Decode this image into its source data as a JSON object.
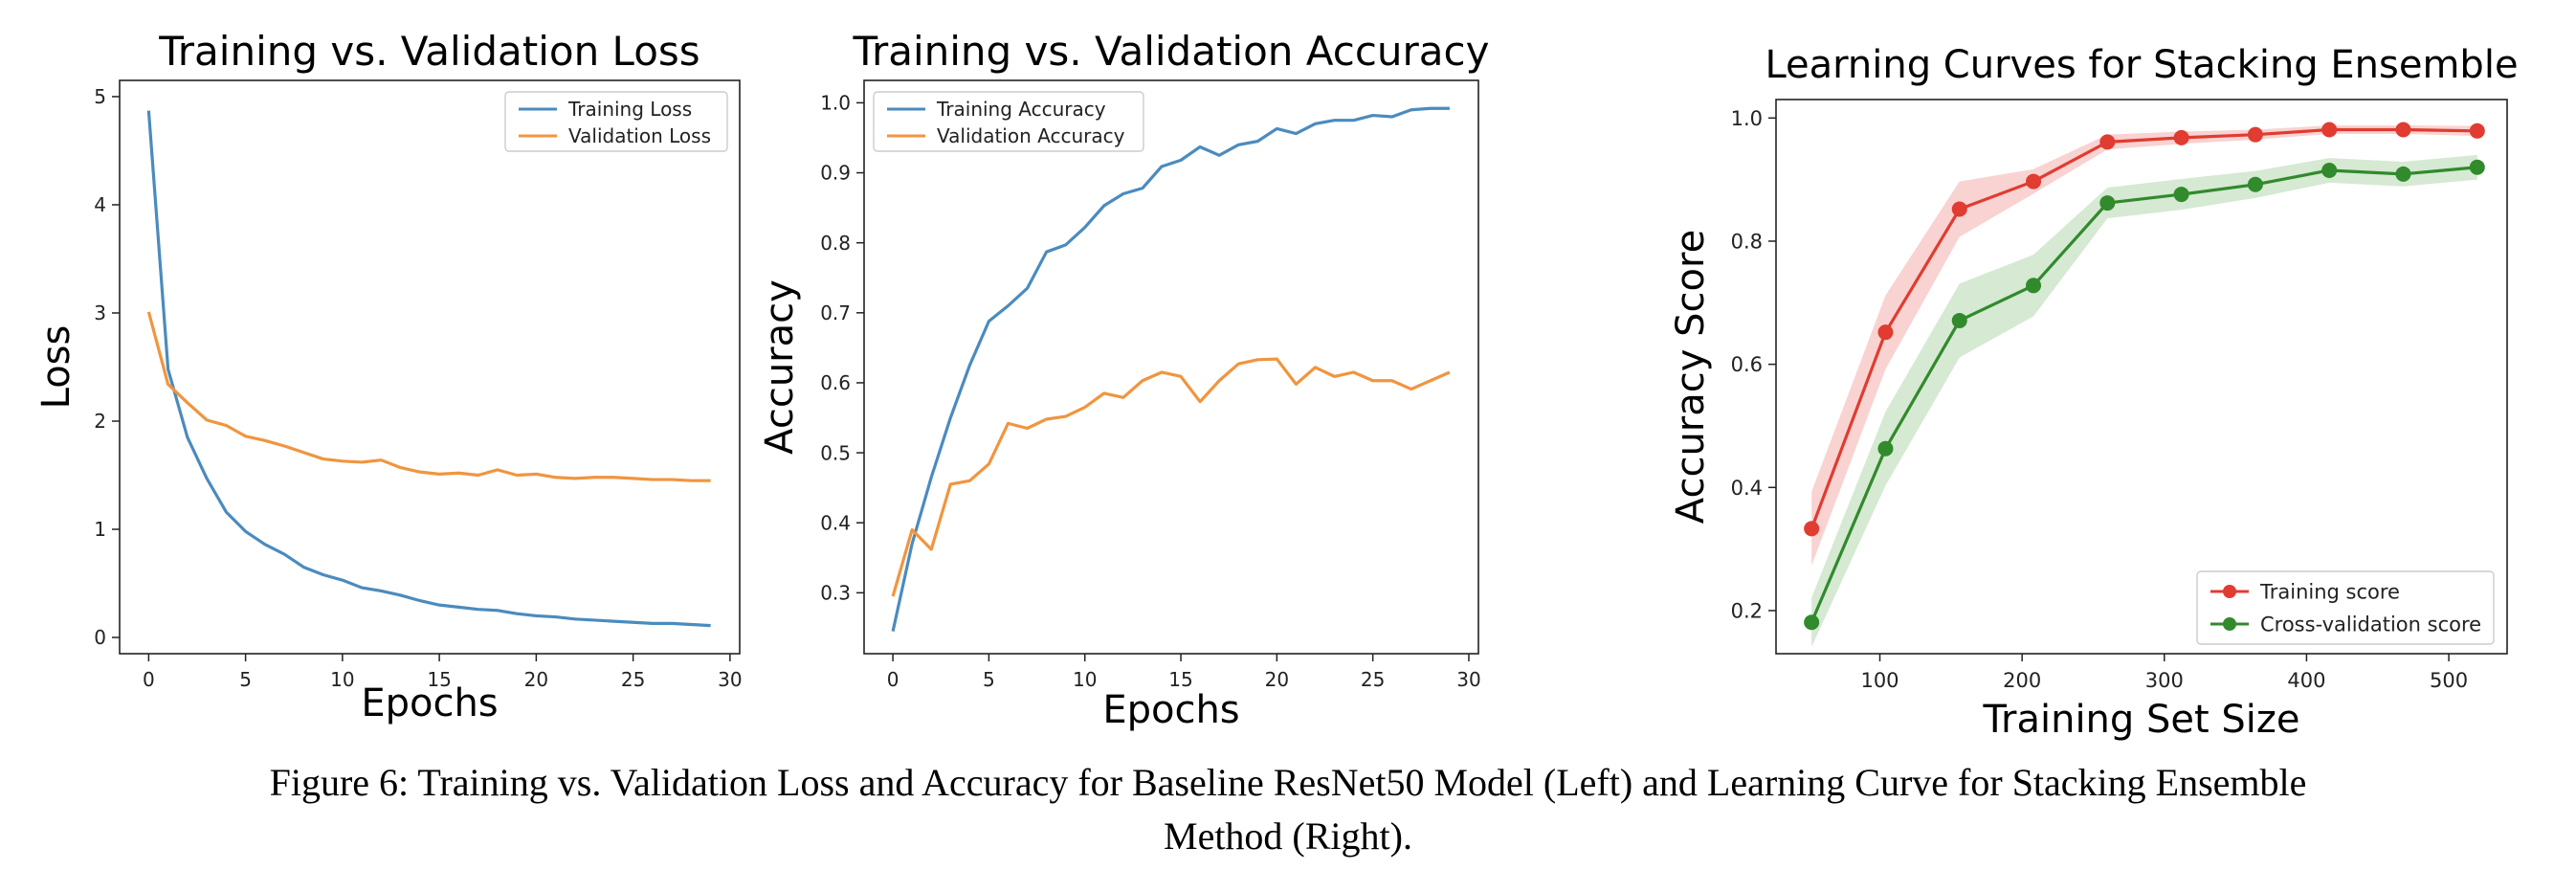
{
  "caption": {
    "line1": "Figure 6: Training vs. Validation Loss and Accuracy for Baseline ResNet50 Model (Left) and Learning Curve for Stacking Ensemble",
    "line2": "Method (Right)."
  },
  "chart_data": [
    {
      "type": "line",
      "title": "Training vs. Validation Loss",
      "xlabel": "Epochs",
      "ylabel": "Loss",
      "xlim": [
        -1.5,
        30.5
      ],
      "ylim": [
        -0.15,
        5.15
      ],
      "xticks": [
        0,
        5,
        10,
        15,
        20,
        25,
        30
      ],
      "yticks": [
        0,
        1,
        2,
        3,
        4,
        5
      ],
      "grid": false,
      "legend": "top-right",
      "x": [
        0,
        1,
        2,
        3,
        4,
        5,
        6,
        7,
        8,
        9,
        10,
        11,
        12,
        13,
        14,
        15,
        16,
        17,
        18,
        19,
        20,
        21,
        22,
        23,
        24,
        25,
        26,
        27,
        28,
        29
      ],
      "series": [
        {
          "name": "Training Loss",
          "color": "#4b8bbe",
          "values": [
            4.87,
            2.48,
            1.85,
            1.47,
            1.16,
            0.98,
            0.86,
            0.77,
            0.65,
            0.58,
            0.53,
            0.46,
            0.43,
            0.39,
            0.34,
            0.3,
            0.28,
            0.26,
            0.25,
            0.22,
            0.2,
            0.19,
            0.17,
            0.16,
            0.15,
            0.14,
            0.13,
            0.13,
            0.12,
            0.11
          ]
        },
        {
          "name": "Validation Loss",
          "color": "#f0953f",
          "values": [
            3.01,
            2.34,
            2.17,
            2.01,
            1.96,
            1.86,
            1.82,
            1.77,
            1.71,
            1.65,
            1.63,
            1.62,
            1.64,
            1.57,
            1.53,
            1.51,
            1.52,
            1.5,
            1.55,
            1.5,
            1.51,
            1.48,
            1.47,
            1.48,
            1.48,
            1.47,
            1.46,
            1.46,
            1.45,
            1.45
          ]
        }
      ]
    },
    {
      "type": "line",
      "title": "Training vs. Validation Accuracy",
      "xlabel": "Epochs",
      "ylabel": "Accuracy",
      "xlim": [
        -1.5,
        30.5
      ],
      "ylim": [
        0.213,
        1.032
      ],
      "xticks": [
        0,
        5,
        10,
        15,
        20,
        25,
        30
      ],
      "yticks": [
        0.3,
        0.4,
        0.5,
        0.6,
        0.7,
        0.8,
        0.9,
        1.0
      ],
      "ytick_labels": [
        "0.3",
        "0.4",
        "0.5",
        "0.6",
        "0.7",
        "0.8",
        "0.9",
        "1.0"
      ],
      "grid": false,
      "legend": "top-left",
      "x": [
        0,
        1,
        2,
        3,
        4,
        5,
        6,
        7,
        8,
        9,
        10,
        11,
        12,
        13,
        14,
        15,
        16,
        17,
        18,
        19,
        20,
        21,
        22,
        23,
        24,
        25,
        26,
        27,
        28,
        29
      ],
      "series": [
        {
          "name": "Training Accuracy",
          "color": "#4b8bbe",
          "values": [
            0.245,
            0.37,
            0.465,
            0.55,
            0.625,
            0.688,
            0.71,
            0.735,
            0.787,
            0.797,
            0.822,
            0.853,
            0.87,
            0.878,
            0.909,
            0.918,
            0.937,
            0.925,
            0.94,
            0.945,
            0.963,
            0.956,
            0.97,
            0.975,
            0.975,
            0.982,
            0.98,
            0.99,
            0.992,
            0.992
          ]
        },
        {
          "name": "Validation Accuracy",
          "color": "#f0953f",
          "values": [
            0.295,
            0.39,
            0.362,
            0.455,
            0.46,
            0.484,
            0.542,
            0.535,
            0.548,
            0.552,
            0.565,
            0.585,
            0.579,
            0.603,
            0.615,
            0.609,
            0.573,
            0.603,
            0.627,
            0.633,
            0.634,
            0.598,
            0.622,
            0.609,
            0.615,
            0.603,
            0.603,
            0.591,
            0.603,
            0.615
          ]
        }
      ]
    },
    {
      "type": "line",
      "title": "Learning Curves for Stacking Ensemble",
      "xlabel": "Training Set Size",
      "ylabel": "Accuracy Score",
      "xlim": [
        27,
        541
      ],
      "ylim": [
        0.13,
        1.03
      ],
      "xticks": [
        100,
        200,
        300,
        400,
        500
      ],
      "yticks": [
        0.2,
        0.4,
        0.6,
        0.8,
        1.0
      ],
      "ytick_labels": [
        "0.2",
        "0.4",
        "0.6",
        "0.8",
        "1.0"
      ],
      "grid": false,
      "legend": "bottom-right",
      "x": [
        52,
        104,
        156,
        208,
        260,
        312,
        364,
        416,
        468,
        520
      ],
      "series": [
        {
          "name": "Training score",
          "color": "#e03c31",
          "band_color": "#f4b6b2",
          "values": [
            0.333,
            0.652,
            0.852,
            0.897,
            0.961,
            0.968,
            0.973,
            0.981,
            0.981,
            0.979
          ],
          "std": [
            0.06,
            0.06,
            0.045,
            0.02,
            0.012,
            0.01,
            0.008,
            0.007,
            0.007,
            0.008
          ]
        },
        {
          "name": "Cross-validation score",
          "color": "#318a2c",
          "band_color": "#b9dbb5",
          "values": [
            0.181,
            0.463,
            0.671,
            0.728,
            0.862,
            0.876,
            0.892,
            0.915,
            0.909,
            0.92
          ],
          "std": [
            0.04,
            0.06,
            0.06,
            0.05,
            0.025,
            0.025,
            0.022,
            0.02,
            0.02,
            0.02
          ]
        }
      ]
    }
  ]
}
